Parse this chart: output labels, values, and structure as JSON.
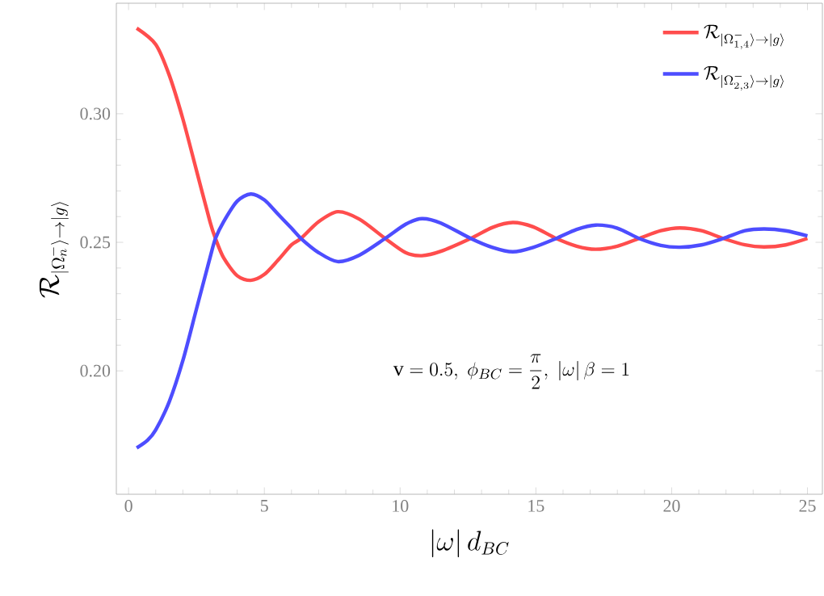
{
  "chart_data": {
    "type": "line",
    "xlabel": "|\\omega|\\, d_{BC}",
    "ylabel": "\\mathcal{R}_{|\\Omega^{-}_{n}\\rangle\\to|g\\rangle}",
    "annotations": [
      "\\mathrm{v}=0.5,\\ \\phi_{BC}=\\dfrac{\\pi}{2},\\ |\\omega|\\,\\beta=1"
    ],
    "xlim": [
      -0.45,
      25.55
    ],
    "ylim": [
      0.152,
      0.343
    ],
    "xticks": [
      0,
      5,
      10,
      15,
      20,
      25
    ],
    "yticks": [
      {
        "value": 0.2,
        "label": "0.20"
      },
      {
        "value": 0.25,
        "label": "0.25"
      },
      {
        "value": 0.3,
        "label": "0.30"
      }
    ],
    "legend": "top right",
    "grid": false,
    "marker": "none",
    "line_style": "solid",
    "series": [
      {
        "name": "\\mathcal{R}_{|\\Omega^{-}_{1,4}\\rangle\\to|g\\rangle}",
        "color": "#ff4d4d",
        "x": [
          0.3,
          1,
          1.5,
          2,
          2.5,
          3,
          3.2,
          3.5,
          4,
          4.5,
          5,
          5.5,
          6,
          6.35,
          7,
          7.7,
          8.5,
          9.45,
          10.2,
          10.8,
          11.5,
          12.6,
          13.4,
          14.15,
          14.9,
          15.75,
          16.5,
          17.2,
          18,
          18.8,
          19.6,
          20.3,
          21.1,
          21.9,
          22.7,
          23.4,
          24.2,
          25
        ],
        "values": [
          0.3333,
          0.327,
          0.315,
          0.298,
          0.278,
          0.258,
          0.2515,
          0.244,
          0.237,
          0.2352,
          0.2375,
          0.243,
          0.249,
          0.2515,
          0.258,
          0.2619,
          0.259,
          0.2515,
          0.246,
          0.2448,
          0.2465,
          0.2515,
          0.2558,
          0.2577,
          0.256,
          0.2515,
          0.2485,
          0.2473,
          0.2485,
          0.2515,
          0.2545,
          0.2556,
          0.2545,
          0.2515,
          0.249,
          0.2482,
          0.249,
          0.2515
        ]
      },
      {
        "name": "\\mathcal{R}_{|\\Omega^{-}_{2,3}\\rangle\\to|g\\rangle}",
        "color": "#4d4dff",
        "x": [
          0.3,
          0.7,
          1,
          1.5,
          2,
          2.5,
          3,
          3.2,
          3.5,
          4,
          4.5,
          5,
          5.5,
          6,
          6.35,
          7,
          7.7,
          8.5,
          9.45,
          10.2,
          10.8,
          11.5,
          12.6,
          13.4,
          14.15,
          14.9,
          15.75,
          16.5,
          17.2,
          18,
          18.8,
          19.6,
          20.3,
          21.1,
          21.9,
          22.7,
          23.4,
          24.2,
          25
        ],
        "values": [
          0.17,
          0.173,
          0.177,
          0.188,
          0.204,
          0.224,
          0.244,
          0.2515,
          0.258,
          0.266,
          0.2688,
          0.2665,
          0.261,
          0.2555,
          0.2515,
          0.246,
          0.2425,
          0.245,
          0.2515,
          0.257,
          0.2592,
          0.2575,
          0.2515,
          0.248,
          0.2463,
          0.248,
          0.2515,
          0.255,
          0.2567,
          0.2555,
          0.2515,
          0.2488,
          0.2481,
          0.249,
          0.2515,
          0.2545,
          0.2552,
          0.2545,
          0.2525
        ]
      }
    ]
  }
}
